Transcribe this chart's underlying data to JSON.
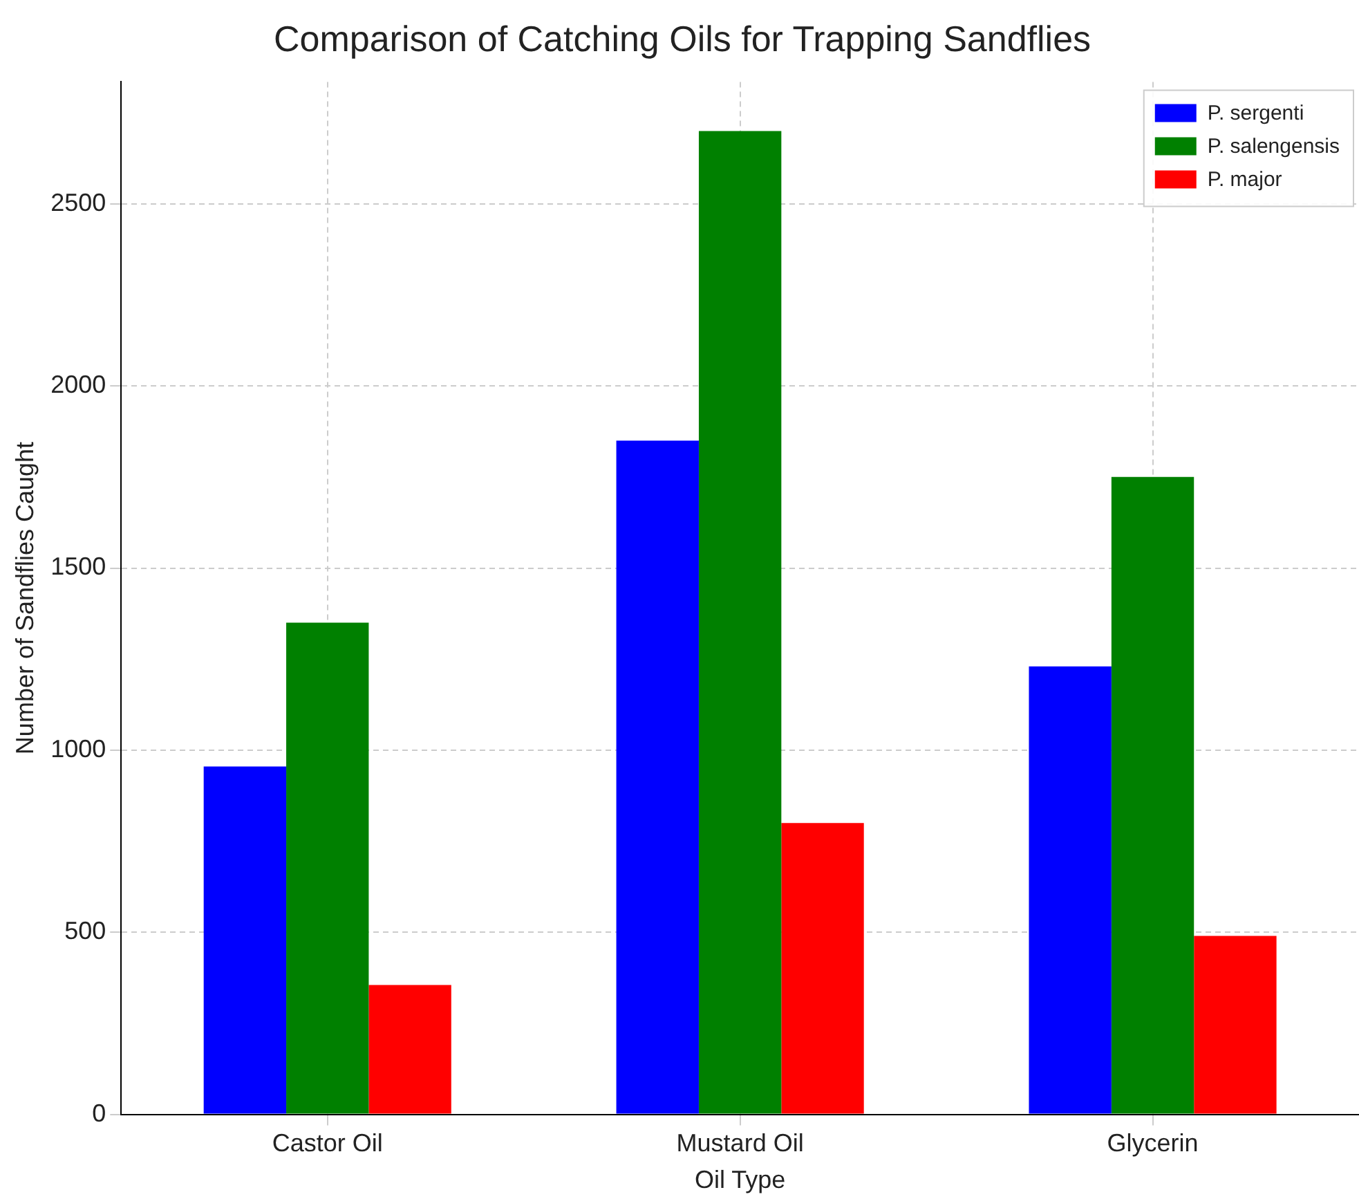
{
  "chart_data": {
    "type": "bar",
    "title": "Comparison of Catching Oils for Trapping Sandflies",
    "xlabel": "Oil Type",
    "ylabel": "Number of Sandflies Caught",
    "categories": [
      "Castor Oil",
      "Mustard Oil",
      "Glycerin"
    ],
    "series": [
      {
        "name": "P. sergenti",
        "color": "#0000ff",
        "values": [
          955,
          1850,
          1230
        ]
      },
      {
        "name": "P. salengensis",
        "color": "#008000",
        "values": [
          1350,
          2700,
          1750
        ]
      },
      {
        "name": "P. major",
        "color": "#ff0000",
        "values": [
          355,
          800,
          490
        ]
      }
    ],
    "ylim": [
      0,
      2835
    ],
    "yticks": [
      0,
      500,
      1000,
      1500,
      2000,
      2500
    ],
    "grid": true,
    "legend": "top right"
  }
}
